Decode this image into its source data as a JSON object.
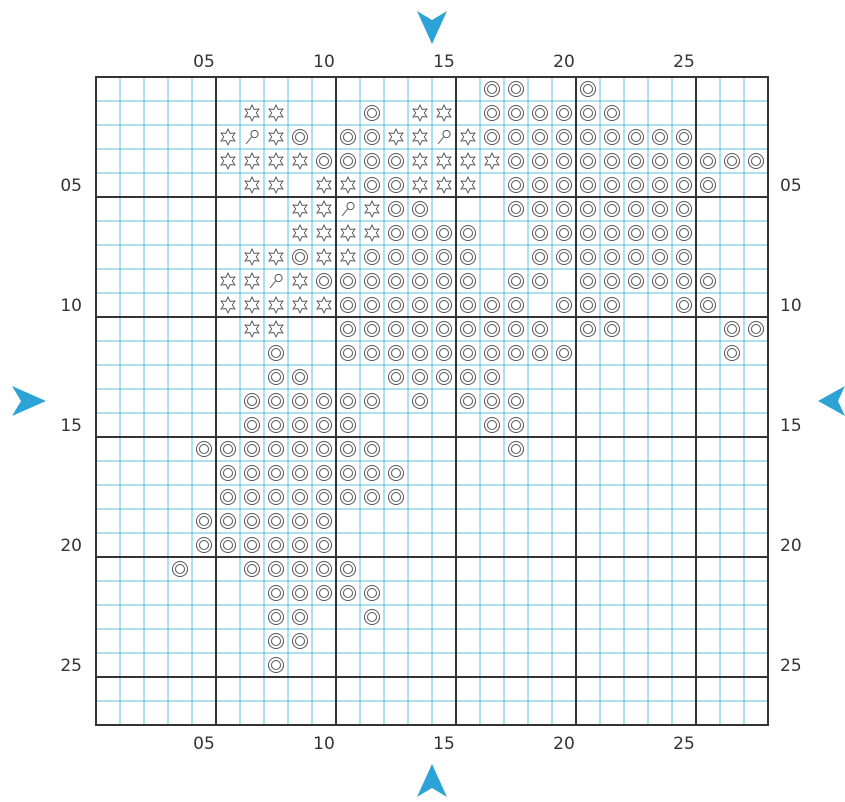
{
  "chart_data": {
    "type": "cross-stitch-pattern",
    "cols": 28,
    "rows": 27,
    "x_ticks": [
      {
        "col": 5,
        "label": "05"
      },
      {
        "col": 10,
        "label": "10"
      },
      {
        "col": 15,
        "label": "15"
      },
      {
        "col": 20,
        "label": "20"
      },
      {
        "col": 25,
        "label": "25"
      }
    ],
    "y_ticks": [
      {
        "row": 5,
        "label": "05"
      },
      {
        "row": 10,
        "label": "10"
      },
      {
        "row": 15,
        "label": "15"
      },
      {
        "row": 20,
        "label": "20"
      },
      {
        "row": 25,
        "label": "25"
      }
    ],
    "symbol_key": {
      "o": "double-circle-symbol",
      "s": "star-symbol",
      "p": "backstitch-symbol"
    },
    "pattern": [
      "................oo..o.......",
      "......ss...o.ss.oooooo......",
      ".....spso.oosspsooooooooo...",
      ".....ssssoooossssooooooooooo",
      "......ss.ssoosss.ooooooooo..",
      "........sspsoo...oooooooo...",
      "........ssssoooo..ooooooo...",
      "......ssossooooo..ooooooo...",
      ".....sspsooooooo.oo.oooooo..",
      ".....sssssoooooooo.ooo..oo..",
      "......ss..ooooooooo.oo....oo",
      ".......o..oooooooooo......o.",
      ".......oo...ooooo...........",
      "......oooooo.o.ooo..........",
      "......ooooo.....oo..........",
      "....oooooooo.....o..........",
      ".....oooooooo...............",
      ".....oooooooo...............",
      "....oooooo..................",
      "....oooooo..................",
      "...o..ooooo.................",
      ".......ooooo................",
      ".......oo..o................",
      ".......oo...................",
      ".......o....................",
      "............................",
      "............................"
    ],
    "colors": {
      "grid_minor": "#5BC0D8",
      "grid_major": "#333333",
      "symbol_stroke": "#555555",
      "arrow": "#2BA3D6"
    }
  }
}
